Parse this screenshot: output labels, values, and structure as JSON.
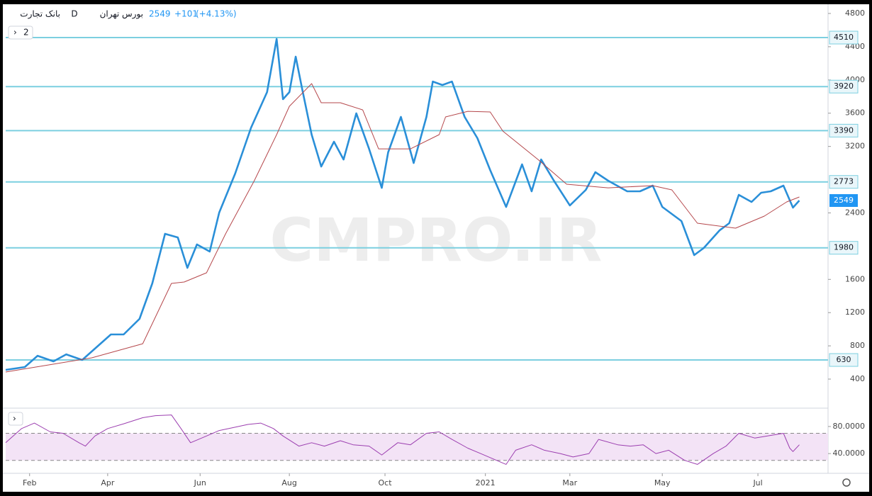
{
  "header": {
    "title": "بانک تجارت",
    "interval": "D",
    "exchange": "بورس تهران",
    "change": "+101",
    "change_percent": "(+4.13%)",
    "indicator_count": 2
  },
  "watermark": "CMPRO.IR",
  "chart_data": [
    {
      "type": "line",
      "xlim": [
        0,
        258
      ],
      "ylim": [
        59,
        4894
      ],
      "xticks": [
        {
          "value": 7.5,
          "label": "Feb"
        },
        {
          "value": 32,
          "label": "Apr"
        },
        {
          "value": 61,
          "label": "Jun"
        },
        {
          "value": 89,
          "label": "Aug"
        },
        {
          "value": 119,
          "label": "Oct"
        },
        {
          "value": 150.5,
          "label": "2021"
        },
        {
          "value": 177,
          "label": "Mar"
        },
        {
          "value": 206,
          "label": "May"
        },
        {
          "value": 236,
          "label": "Jul"
        }
      ],
      "yticks": [
        400,
        800,
        1200,
        1600,
        2400,
        3200,
        3600,
        4000,
        4400,
        4800
      ],
      "levels": [
        4510,
        3920,
        3390,
        2773,
        1980,
        630
      ],
      "level_color": "#7ccfe0",
      "series": [
        {
          "color": "#2a8fd8",
          "width": 2.6,
          "x": [
            0,
            6,
            10,
            15,
            19,
            24,
            27,
            33,
            37,
            42,
            46,
            50,
            54,
            57,
            60,
            64,
            67,
            72,
            77,
            82,
            85,
            87,
            89,
            91,
            93,
            96,
            99,
            103,
            106,
            110,
            114,
            118,
            120,
            124,
            128,
            132,
            134,
            137,
            140,
            144,
            148,
            152,
            157,
            162,
            165,
            168,
            172,
            177,
            182,
            185,
            189,
            195,
            199,
            203,
            206,
            212,
            216,
            219,
            224,
            227,
            230,
            234,
            237,
            240,
            244,
            247,
            249
          ],
          "values": [
            511,
            545,
            681,
            613,
            698,
            630,
            733,
            937,
            937,
            1125,
            1551,
            2148,
            2105,
            1739,
            2020,
            1935,
            2404,
            2873,
            3427,
            3854,
            4493,
            3768,
            3854,
            4280,
            3896,
            3342,
            2958,
            3257,
            3043,
            3598,
            3171,
            2702,
            3129,
            3555,
            3001,
            3555,
            3981,
            3939,
            3981,
            3555,
            3299,
            2916,
            2472,
            2984,
            2660,
            3043,
            2788,
            2490,
            2677,
            2890,
            2788,
            2660,
            2660,
            2728,
            2472,
            2302,
            1892,
            1978,
            2191,
            2276,
            2617,
            2532,
            2643,
            2660,
            2728,
            2464,
            2549
          ]
        },
        {
          "color": "#b5474b",
          "width": 1,
          "x": [
            0,
            27,
            43,
            52,
            56,
            63,
            69,
            78,
            85,
            89,
            96,
            99,
            105,
            112,
            117,
            127,
            136,
            138,
            145,
            152,
            156,
            167,
            176,
            189,
            203,
            209,
            217,
            229,
            238,
            245,
            249
          ],
          "values": [
            485,
            656,
            826,
            1551,
            1568,
            1679,
            2148,
            2788,
            3342,
            3683,
            3956,
            3726,
            3726,
            3640,
            3171,
            3171,
            3342,
            3555,
            3623,
            3615,
            3384,
            3043,
            2745,
            2702,
            2728,
            2677,
            2276,
            2216,
            2361,
            2532,
            2592
          ]
        }
      ]
    },
    {
      "type": "line",
      "xlim": [
        0,
        258
      ],
      "ylim": [
        14,
        105
      ],
      "yticks": [
        {
          "value": 80,
          "label": "80.0000"
        },
        {
          "value": 40,
          "label": "40.0000"
        }
      ],
      "bands": [
        30,
        70
      ],
      "band_color": "#f3e3f6",
      "series": [
        {
          "color": "#9c3fb0",
          "width": 1,
          "x": [
            0,
            5,
            9,
            14,
            18,
            23,
            25,
            28,
            32,
            37,
            43,
            47,
            52,
            55,
            58,
            63,
            67,
            72,
            76,
            80,
            84,
            87,
            92,
            96,
            100,
            105,
            109,
            114,
            118,
            123,
            127,
            132,
            136,
            140,
            145,
            149,
            154,
            157,
            160,
            165,
            169,
            174,
            178,
            183,
            186,
            192,
            196,
            200,
            204,
            208,
            213,
            217,
            222,
            226,
            230,
            235,
            239,
            244,
            246,
            247,
            249
          ],
          "values": [
            56,
            77,
            85,
            72,
            70,
            56,
            51,
            66,
            77,
            84,
            93,
            96,
            97,
            77,
            56,
            66,
            74,
            79,
            83,
            85,
            77,
            66,
            51,
            56,
            51,
            59,
            53,
            51,
            38,
            56,
            53,
            70,
            72,
            61,
            48,
            40,
            30,
            24,
            45,
            53,
            45,
            40,
            35,
            40,
            61,
            53,
            51,
            53,
            40,
            45,
            30,
            24,
            40,
            51,
            70,
            63,
            66,
            70,
            48,
            43,
            53
          ]
        }
      ]
    }
  ]
}
